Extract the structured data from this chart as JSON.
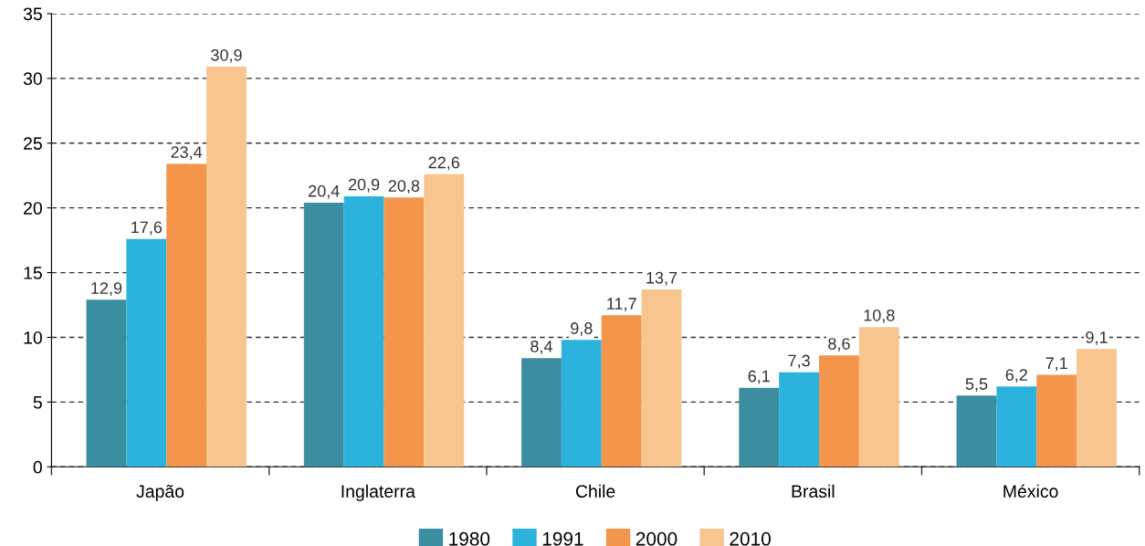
{
  "chart_data": {
    "type": "bar",
    "categories": [
      "Japão",
      "Inglaterra",
      "Chile",
      "Brasil",
      "México"
    ],
    "series": [
      {
        "name": "1980",
        "color": "#3b8ea0",
        "values": [
          12.9,
          20.4,
          8.4,
          6.1,
          5.5
        ]
      },
      {
        "name": "1991",
        "color": "#2bb3de",
        "values": [
          17.6,
          20.9,
          9.8,
          7.3,
          6.2
        ]
      },
      {
        "name": "2000",
        "color": "#f3954a",
        "values": [
          23.4,
          20.8,
          11.7,
          8.6,
          7.1
        ]
      },
      {
        "name": "2010",
        "color": "#f8c58e",
        "values": [
          30.9,
          22.6,
          13.7,
          10.8,
          9.1
        ]
      }
    ],
    "value_labels": [
      [
        "12,9",
        "20,4",
        "8,4",
        "6,1",
        "5,5"
      ],
      [
        "17,6",
        "20,9",
        "9,8",
        "7,3",
        "6,2"
      ],
      [
        "23,4",
        "20,8",
        "11,7",
        "8,6",
        "7,1"
      ],
      [
        "30,9",
        "22,6",
        "13,7",
        "10,8",
        "9,1"
      ]
    ],
    "ylim": [
      0,
      35
    ],
    "yticks": [
      0,
      5,
      10,
      15,
      20,
      25,
      30,
      35
    ],
    "grid": "y",
    "legend": "bottom"
  }
}
